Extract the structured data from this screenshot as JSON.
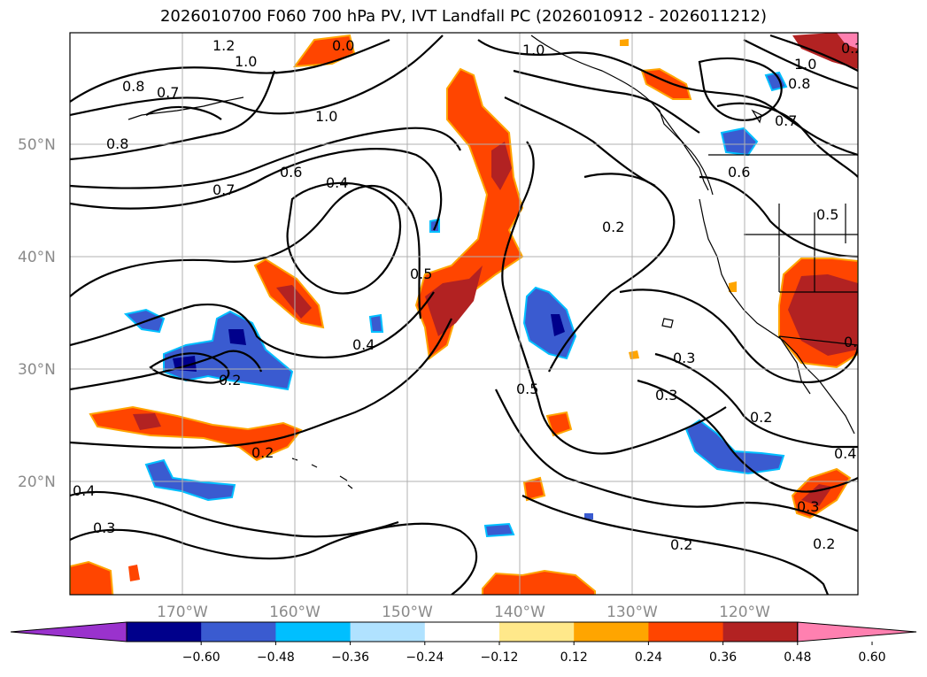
{
  "title": "2026010700 F060 700 hPa PV, IVT Landfall PC (2026010912 - 2026011212)",
  "lat_labels": [
    "50°N",
    "40°N",
    "30°N",
    "20°N"
  ],
  "lon_labels": [
    "170°W",
    "160°W",
    "150°W",
    "140°W",
    "130°W",
    "120°W"
  ],
  "colorbar": {
    "ticks": [
      "−0.60",
      "−0.48",
      "−0.36",
      "−0.24",
      "−0.12",
      "0.12",
      "0.24",
      "0.36",
      "0.48",
      "0.60"
    ],
    "colors": [
      "#9a32cd",
      "#00008b",
      "#3a5bd0",
      "#00bfff",
      "#b0e2ff",
      "#ffffff",
      "#ffe88a",
      "#ffa500",
      "#ff4500",
      "#b22222",
      "#ff80b0"
    ]
  },
  "contour_labels": [
    "1.2",
    "1.0",
    "0.0",
    "1.0",
    "0.8",
    "0.7",
    "1.0",
    "0.8",
    "0.7",
    "0.6",
    "0.4",
    "0.5",
    "0.2",
    "0.4",
    "0.2",
    "0.2",
    "0.5",
    "0.3",
    "0.2",
    "0.4",
    "0.3",
    "0.2",
    "0.3",
    "0.2",
    "0.6",
    "0.7",
    "0.8",
    "1.0",
    "0.5",
    "0.5",
    "0.4",
    "0.3",
    "0.2"
  ],
  "map": {
    "pv_contour_color": "#000000",
    "grid_color": "#b0b0b0",
    "coast_color": "#000000"
  }
}
